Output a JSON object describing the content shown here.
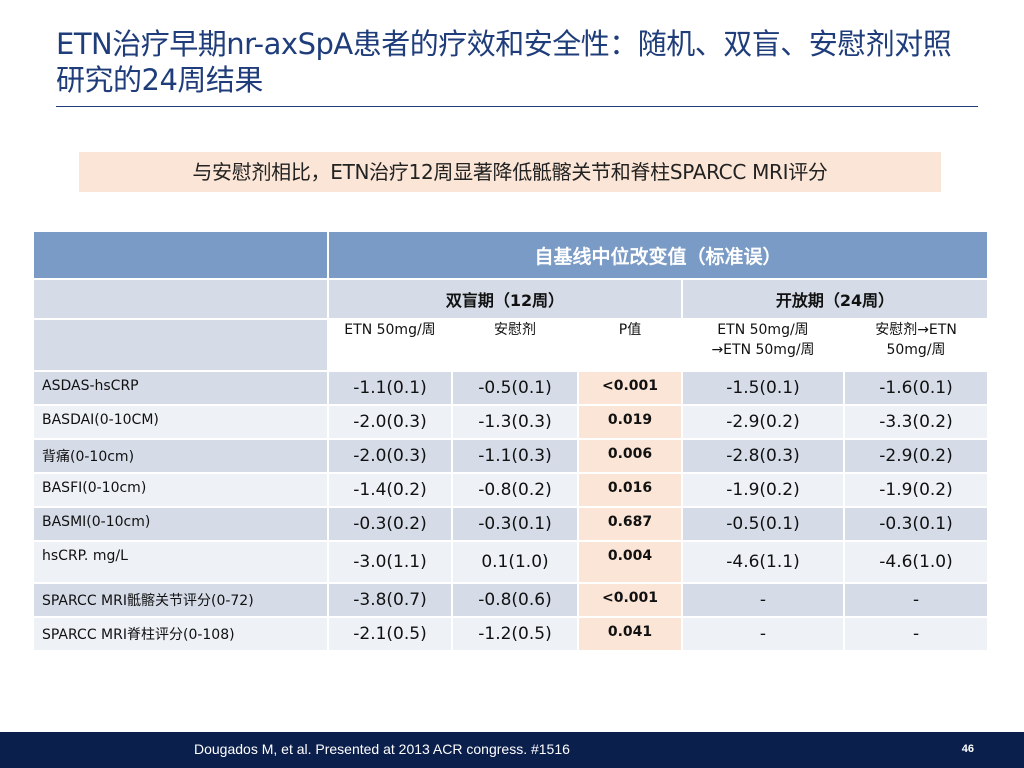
{
  "slide": {
    "title": "ETN治疗早期nr-axSpA患者的疗效和安全性：随机、双盲、安慰剂对照研究的24周结果",
    "callout": "与安慰剂相比，ETN治疗12周显著降低骶髂关节和脊柱SPARCC MRI评分"
  },
  "table": {
    "main_header": "自基线中位改变值（标准误）",
    "group_headers": [
      "双盲期（12周）",
      "开放期（24周）"
    ],
    "sub_headers": [
      "ETN 50mg/周",
      "安慰剂",
      "P值",
      "ETN 50mg/周→ETN 50mg/周",
      "安慰剂→ETN 50mg/周"
    ],
    "rows": [
      {
        "label": "ASDAS-hsCRP",
        "etn12": "-1.1(0.1)",
        "pbo12": "-0.5(0.1)",
        "p": "<0.001",
        "etn24": "-1.5(0.1)",
        "pbo24": "-1.6(0.1)"
      },
      {
        "label": "BASDAI(0-10CM)",
        "etn12": "-2.0(0.3)",
        "pbo12": "-1.3(0.3)",
        "p": "0.019",
        "etn24": "-2.9(0.2)",
        "pbo24": "-3.3(0.2)"
      },
      {
        "label": "背痛(0-10cm)",
        "etn12": "-2.0(0.3)",
        "pbo12": "-1.1(0.3)",
        "p": "0.006",
        "etn24": "-2.8(0.3)",
        "pbo24": "-2.9(0.2)"
      },
      {
        "label": "BASFI(0-10cm)",
        "etn12": "-1.4(0.2)",
        "pbo12": "-0.8(0.2)",
        "p": "0.016",
        "etn24": "-1.9(0.2)",
        "pbo24": "-1.9(0.2)"
      },
      {
        "label": "BASMI(0-10cm)",
        "etn12": "-0.3(0.2)",
        "pbo12": "-0.3(0.1)",
        "p": "0.687",
        "etn24": "-0.5(0.1)",
        "pbo24": "-0.3(0.1)"
      },
      {
        "label": "hsCRP. mg/L",
        "etn12": "-3.0(1.1)",
        "pbo12": "0.1(1.0)",
        "p": "0.004",
        "etn24": "-4.6(1.1)",
        "pbo24": "-4.6(1.0)"
      },
      {
        "label": "SPARCC MRI骶髂关节评分(0-72)",
        "etn12": "-3.8(0.7)",
        "pbo12": "-0.8(0.6)",
        "p": "<0.001",
        "etn24": "-",
        "pbo24": "-"
      },
      {
        "label": "SPARCC MRI脊柱评分(0-108)",
        "etn12": "-2.1(0.5)",
        "pbo12": "-1.2(0.5)",
        "p": "0.041",
        "etn24": "-",
        "pbo24": "-"
      }
    ]
  },
  "footer": {
    "citation": "Dougados M, et al. Presented at 2013 ACR congress. #1516",
    "page_number": "46"
  },
  "colors": {
    "title": "#1f3d7a",
    "header_blue": "#7a9bc6",
    "row_band_dark": "#d5dce8",
    "row_band_light": "#eef1f6",
    "highlight_peach": "#fbe5d6",
    "footer_navy": "#0b1f4d"
  }
}
